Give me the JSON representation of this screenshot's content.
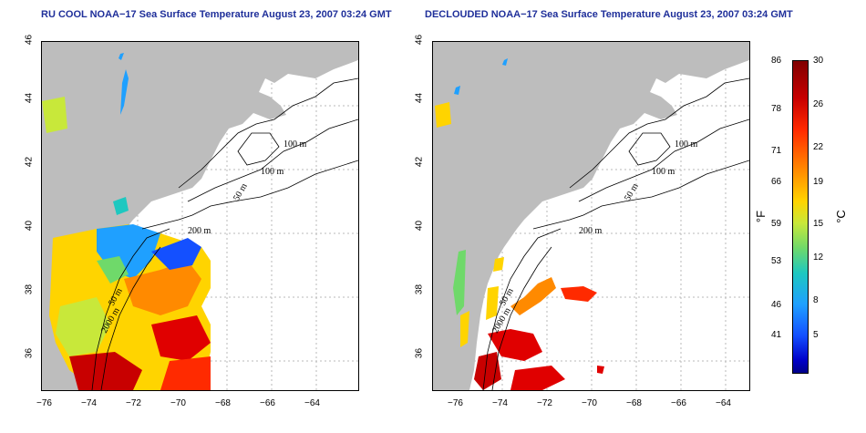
{
  "panels": [
    {
      "title": "RU COOL NOAA−17 Sea Surface Temperature August 23, 2007 03:24 GMT",
      "x_ticks": [
        "−76",
        "−74",
        "−72",
        "−70",
        "−68",
        "−66",
        "−64"
      ],
      "y_ticks": [
        "36",
        "38",
        "40",
        "42",
        "44",
        "46"
      ],
      "contour_labels": [
        "100 m",
        "100 m",
        "50 m",
        "200 m",
        "50 m",
        "2000 m"
      ]
    },
    {
      "title": "DECLOUDED NOAA−17 Sea Surface Temperature August 23, 2007 03:24 GMT",
      "x_ticks": [
        "−76",
        "−74",
        "−72",
        "−70",
        "−68",
        "−66",
        "−64"
      ],
      "y_ticks": [
        "36",
        "38",
        "40",
        "42",
        "44",
        "46"
      ],
      "contour_labels": [
        "100 m",
        "100 m",
        "50 m",
        "200 m",
        "50 m",
        "2000 m"
      ]
    }
  ],
  "colorbar": {
    "fahrenheit_ticks": [
      "86",
      "78",
      "71",
      "66",
      "59",
      "53",
      "46",
      "41"
    ],
    "celsius_ticks": [
      "30",
      "26",
      "22",
      "19",
      "15",
      "12",
      "8",
      "5"
    ],
    "fahrenheit_unit": "°F",
    "celsius_unit": "°C"
  },
  "colors": {
    "land": "#bdbdbd",
    "contour": "#000000",
    "grid": "#b0b0b0",
    "title": "#1f2f9a"
  }
}
